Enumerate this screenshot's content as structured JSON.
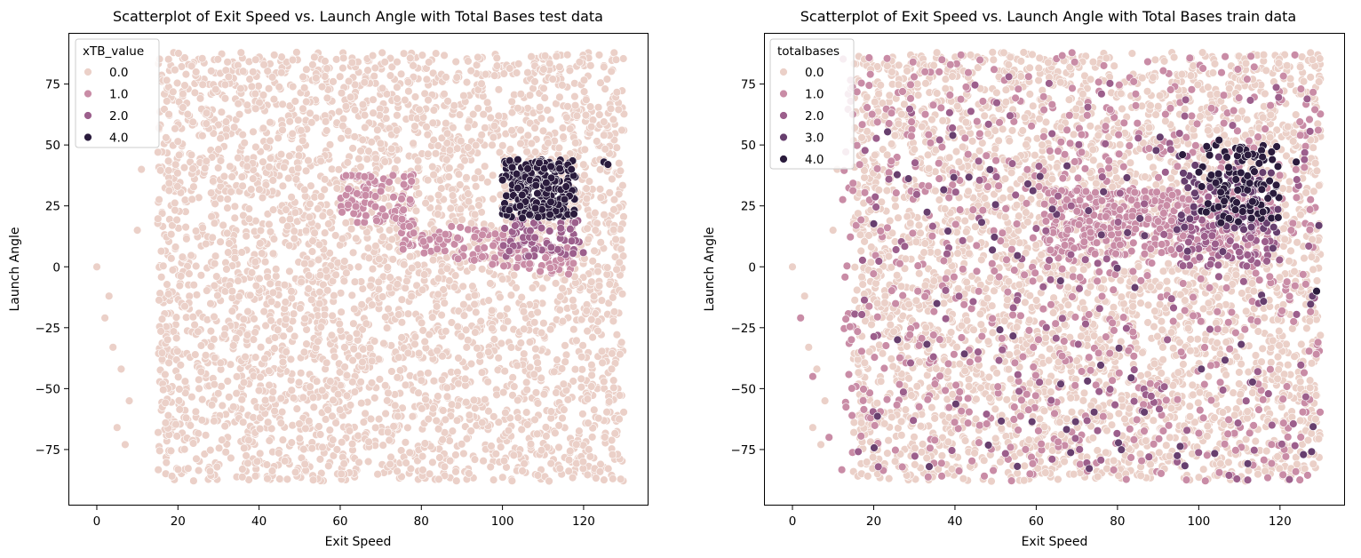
{
  "chart_data": [
    {
      "type": "scatter",
      "title": "Scatterplot of Exit Speed vs. Launch Angle with Total Bases test data",
      "xlabel": "Exit Speed",
      "ylabel": "Launch Angle",
      "xlim": [
        -7,
        136
      ],
      "ylim": [
        -98,
        96
      ],
      "xticks": [
        0,
        20,
        40,
        60,
        80,
        100,
        120
      ],
      "yticks": [
        -75,
        -50,
        -25,
        0,
        25,
        50,
        75
      ],
      "grid": false,
      "legend": {
        "title": "xTB_value",
        "placement": "top-left",
        "entries": [
          {
            "label": "0.0",
            "color": "#ebd0c8"
          },
          {
            "label": "1.0",
            "color": "#c98ca6"
          },
          {
            "label": "2.0",
            "color": "#9c5f8c"
          },
          {
            "label": "4.0",
            "color": "#2a1b3c"
          }
        ]
      },
      "series": [
        {
          "name": "0.0",
          "color": "#ebd0c8",
          "regions": [
            {
              "x": [
                15,
                130
              ],
              "y": [
                -88,
                88
              ]
            }
          ],
          "points": [
            [
              0,
              0
            ],
            [
              2,
              -21
            ],
            [
              4,
              -33
            ],
            [
              6,
              -42
            ],
            [
              8,
              -55
            ],
            [
              10,
              15
            ],
            [
              11,
              40
            ],
            [
              3,
              -12
            ],
            [
              5,
              -66
            ],
            [
              7,
              -73
            ],
            [
              125,
              82
            ],
            [
              128,
              85
            ],
            [
              116,
              87
            ],
            [
              119,
              84
            ],
            [
              124,
              44
            ],
            [
              125,
              54
            ],
            [
              127,
              36
            ]
          ]
        },
        {
          "name": "1.0",
          "color": "#c98ca6",
          "regions": [
            {
              "x": [
                60,
                78
              ],
              "y": [
                18,
                38
              ]
            },
            {
              "x": [
                75,
                118
              ],
              "y": [
                0,
                18
              ]
            }
          ],
          "points": [
            [
              62,
              32
            ],
            [
              66,
              37
            ],
            [
              70,
              31
            ]
          ]
        },
        {
          "name": "2.0",
          "color": "#9c5f8c",
          "regions": [
            {
              "x": [
                100,
                120
              ],
              "y": [
                4,
                20
              ]
            }
          ],
          "points": [
            [
              108,
              12
            ],
            [
              112,
              8
            ]
          ]
        },
        {
          "name": "4.0",
          "color": "#2a1b3c",
          "regions": [
            {
              "x": [
                100,
                118
              ],
              "y": [
                20,
                44
              ]
            }
          ],
          "points": [
            [
              125,
              43
            ],
            [
              126,
              42
            ],
            [
              117,
              40
            ]
          ]
        }
      ]
    },
    {
      "type": "scatter",
      "title": "Scatterplot of Exit Speed vs. Launch Angle with Total Bases train data",
      "xlabel": "Exit Speed",
      "ylabel": "Launch Angle",
      "xlim": [
        -7,
        136
      ],
      "ylim": [
        -98,
        96
      ],
      "xticks": [
        0,
        20,
        40,
        60,
        80,
        100,
        120
      ],
      "yticks": [
        -75,
        -50,
        -25,
        0,
        25,
        50,
        75
      ],
      "grid": false,
      "legend": {
        "title": "totalbases",
        "placement": "top-left",
        "entries": [
          {
            "label": "0.0",
            "color": "#ebd0c8"
          },
          {
            "label": "1.0",
            "color": "#c98ca6"
          },
          {
            "label": "2.0",
            "color": "#9c5f8c"
          },
          {
            "label": "3.0",
            "color": "#673f6e"
          },
          {
            "label": "4.0",
            "color": "#2a1b3c"
          }
        ]
      },
      "series": [
        {
          "name": "0.0",
          "color": "#ebd0c8",
          "regions": [
            {
              "x": [
                15,
                130
              ],
              "y": [
                -88,
                88
              ]
            }
          ],
          "points": [
            [
              0,
              0
            ],
            [
              2,
              -21
            ],
            [
              4,
              -33
            ],
            [
              6,
              -42
            ],
            [
              8,
              -55
            ],
            [
              10,
              15
            ],
            [
              11,
              40
            ],
            [
              3,
              -12
            ],
            [
              5,
              -66
            ],
            [
              7,
              -73
            ],
            [
              125,
              82
            ],
            [
              128,
              85
            ],
            [
              116,
              87
            ]
          ]
        },
        {
          "name": "1.0",
          "color": "#c98ca6",
          "regions": [
            {
              "x": [
                12,
                130
              ],
              "y": [
                -88,
                88
              ]
            },
            {
              "x": [
                62,
                115
              ],
              "y": [
                5,
                32
              ]
            }
          ],
          "points": [
            [
              2,
              -21
            ],
            [
              5,
              -45
            ],
            [
              9,
              -70
            ],
            [
              125,
              54
            ]
          ]
        },
        {
          "name": "2.0",
          "color": "#9c5f8c",
          "regions": [
            {
              "x": [
                15,
                130
              ],
              "y": [
                -88,
                80
              ]
            },
            {
              "x": [
                95,
                120
              ],
              "y": [
                0,
                25
              ]
            }
          ],
          "points": [
            [
              126,
              44
            ],
            [
              129,
              -10
            ]
          ]
        },
        {
          "name": "3.0",
          "color": "#673f6e",
          "regions": [
            {
              "x": [
                20,
                130
              ],
              "y": [
                -85,
                60
              ]
            },
            {
              "x": [
                95,
                120
              ],
              "y": [
                15,
                40
              ]
            }
          ],
          "points": [
            [
              128,
              -12
            ],
            [
              129,
              -10
            ]
          ]
        },
        {
          "name": "4.0",
          "color": "#2a1b3c",
          "regions": [
            {
              "x": [
                100,
                120
              ],
              "y": [
                18,
                50
              ]
            }
          ],
          "points": [
            [
              96,
              46
            ],
            [
              105,
              52
            ],
            [
              129,
              -10
            ],
            [
              124,
              43
            ]
          ]
        }
      ]
    }
  ]
}
